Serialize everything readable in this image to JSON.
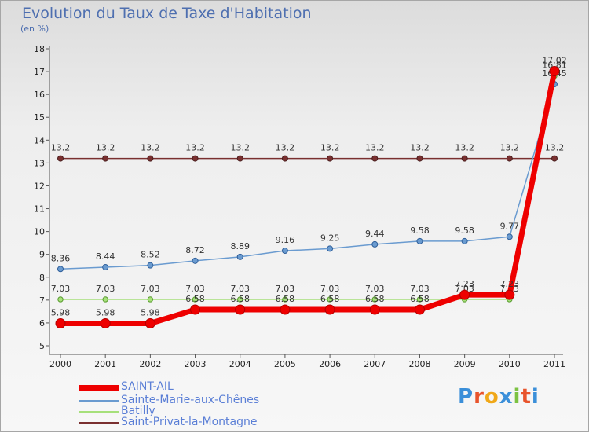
{
  "header": {
    "title": "Evolution du Taux de Taxe d'Habitation",
    "subtitle": "(en %)"
  },
  "logo": {
    "text": "Proxiti",
    "colors": [
      "#3b8fd9",
      "#e8542c",
      "#f0a818",
      "#3b8fd9",
      "#7cc242",
      "#e8542c",
      "#3b8fd9"
    ]
  },
  "chart_data": {
    "type": "line",
    "title": "Evolution du Taux de Taxe d'Habitation",
    "ylabel": "(en %)",
    "xlabel": "",
    "ylim": [
      5,
      18
    ],
    "yticks": [
      5,
      6,
      7,
      8,
      9,
      10,
      11,
      12,
      13,
      14,
      15,
      16,
      17,
      18
    ],
    "grid": false,
    "legend_position": "bottom-left",
    "categories": [
      "2000",
      "2001",
      "2002",
      "2003",
      "2004",
      "2005",
      "2006",
      "2007",
      "2008",
      "2009",
      "2010",
      "2011"
    ],
    "series": [
      {
        "name": "Saint-Privat-la-Montagne",
        "color": "#7a3030",
        "values": [
          13.2,
          13.2,
          13.2,
          13.2,
          13.2,
          13.2,
          13.2,
          13.2,
          13.2,
          13.2,
          13.2,
          13.2
        ],
        "labels": [
          "13.2",
          "13.2",
          "13.2",
          "13.2",
          "13.2",
          "13.2",
          "13.2",
          "13.2",
          "13.2",
          "13.2",
          "13.2",
          "13.2"
        ]
      },
      {
        "name": "Sainte-Marie-aux-Chênes",
        "color": "#6a9bd0",
        "values": [
          8.36,
          8.44,
          8.52,
          8.72,
          8.89,
          9.16,
          9.25,
          9.44,
          9.58,
          9.58,
          9.77,
          16.45
        ],
        "labels": [
          "8.36",
          "8.44",
          "8.52",
          "8.72",
          "8.89",
          "9.16",
          "9.25",
          "9.44",
          "9.58",
          "9.58",
          "9.77",
          "16.45"
        ]
      },
      {
        "name": "Batilly",
        "color": "#a6e07a",
        "values": [
          7.03,
          7.03,
          7.03,
          7.03,
          7.03,
          7.03,
          7.03,
          7.03,
          7.03,
          7.03,
          7.03,
          16.81
        ],
        "labels": [
          "7.03",
          "7.03",
          "7.03",
          "7.03",
          "7.03",
          "7.03",
          "7.03",
          "7.03",
          "7.03",
          "7.03",
          "7.03",
          "16.81"
        ]
      },
      {
        "name": "SAINT-AIL",
        "color": "#ee0000",
        "values": [
          5.98,
          5.98,
          5.98,
          6.58,
          6.58,
          6.58,
          6.58,
          6.58,
          6.58,
          7.23,
          7.23,
          17.02
        ],
        "labels": [
          "5.98",
          "5.98",
          "5.98",
          "6.58",
          "6.58",
          "6.58",
          "6.58",
          "6.58",
          "6.58",
          "7.23",
          "7.23",
          "17.02"
        ]
      }
    ]
  }
}
